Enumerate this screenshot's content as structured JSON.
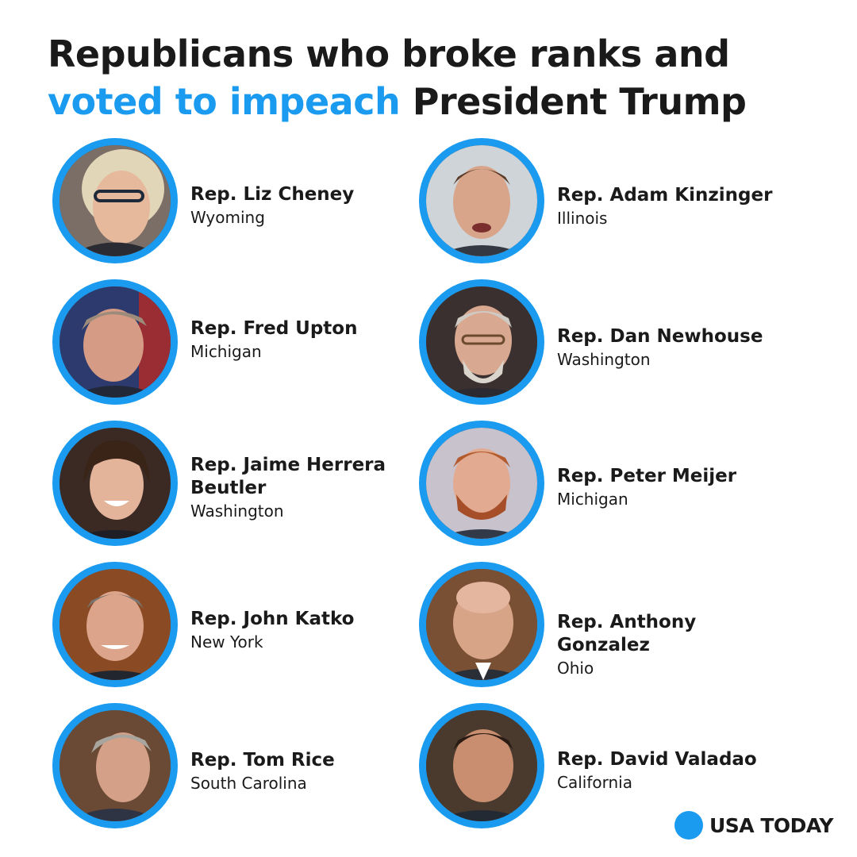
{
  "title": {
    "line1": "Republicans who broke ranks and",
    "line2_accent": "voted to impeach",
    "line2_rest": " President Trump"
  },
  "colors": {
    "accent": "#1a9bf0",
    "text": "#1a1a1a"
  },
  "people": [
    {
      "name": "Rep. Liz Cheney",
      "state": "Wyoming"
    },
    {
      "name": "Rep. Adam Kinzinger",
      "state": "Illinois"
    },
    {
      "name": "Rep. Fred Upton",
      "state": "Michigan"
    },
    {
      "name": "Rep. Dan Newhouse",
      "state": "Washington"
    },
    {
      "name": "Rep. Jaime Herrera Beutler",
      "state": "Washington"
    },
    {
      "name": "Rep. Peter Meijer",
      "state": "Michigan"
    },
    {
      "name": "Rep. John Katko",
      "state": "New York"
    },
    {
      "name": "Rep. Anthony Gonzalez",
      "state": "Ohio"
    },
    {
      "name": "Rep. Tom Rice",
      "state": "South Carolina"
    },
    {
      "name": "Rep. David Valadao",
      "state": "California"
    }
  ],
  "brand": {
    "name": "USA TODAY"
  }
}
